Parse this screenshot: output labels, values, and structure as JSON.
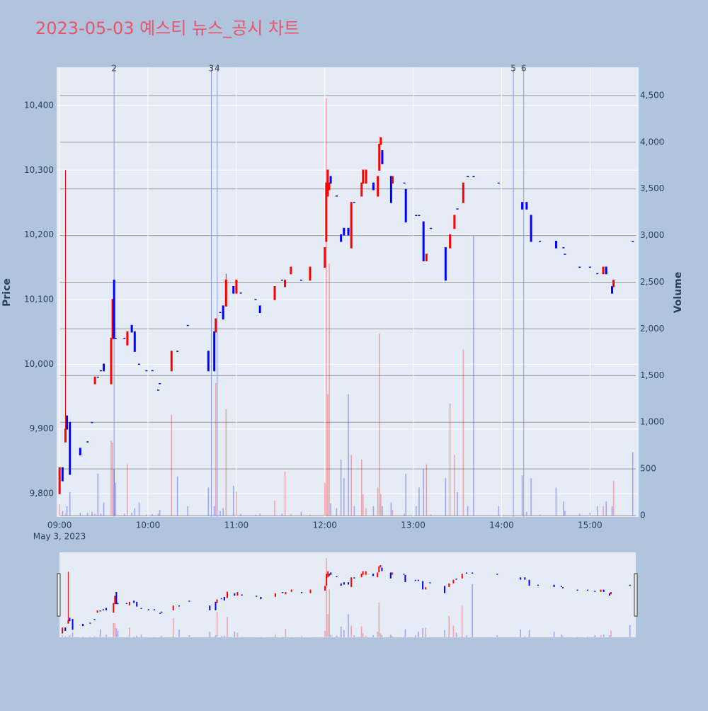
{
  "chart_data": {
    "type": "candlestick",
    "title": "2023-05-03 예스티 뉴스_공시 차트",
    "y_label": "Price",
    "y2_label": "Volume",
    "x_date_label": "May 3, 2023",
    "up_color": "#ff0000",
    "down_color": "#0000ff",
    "xlim": [
      "08:58",
      "15:33"
    ],
    "xticks": [
      "09:00",
      "10:00",
      "11:00",
      "12:00",
      "13:00",
      "14:00",
      "15:00"
    ],
    "ylim": [
      9764,
      10459
    ],
    "yticks": [
      {
        "value": 9800,
        "label": "9,800"
      },
      {
        "value": 9900,
        "label": "9,900"
      },
      {
        "value": 10000,
        "label": "10,000"
      },
      {
        "value": 10100,
        "label": "10,100"
      },
      {
        "value": 10200,
        "label": "10,200"
      },
      {
        "value": 10300,
        "label": "10,300"
      },
      {
        "value": 10400,
        "label": "10,400"
      }
    ],
    "y2lim": [
      -15,
      4803
    ],
    "y2ticks": [
      0,
      500,
      {
        "value": 1000,
        "label": "1,000"
      },
      {
        "value": 1500,
        "label": "1,500"
      },
      {
        "value": 2000,
        "label": "2,000"
      },
      {
        "value": 2500,
        "label": "2,500"
      },
      {
        "value": 3000,
        "label": "3,000"
      },
      {
        "value": 3500,
        "label": "3,500"
      },
      {
        "value": 4000,
        "label": "4,000"
      },
      {
        "value": 4500,
        "label": "4,500"
      }
    ],
    "news": [
      {
        "label": "2",
        "x": "09:37"
      },
      {
        "label": "3",
        "x": "10:43"
      },
      {
        "label": "4",
        "x": "10:47"
      },
      {
        "label": "5",
        "x": "14:08"
      },
      {
        "label": "6",
        "x": "14:15"
      }
    ],
    "x": [
      "09:00",
      "09:02",
      "09:04",
      "09:05",
      "09:07",
      "09:14",
      "09:19",
      "09:22",
      "09:24",
      "09:26",
      "09:28",
      "09:30",
      "09:35",
      "09:36",
      "09:37",
      "09:38",
      "09:44",
      "09:46",
      "09:49",
      "09:51",
      "09:54",
      "09:59",
      "10:03",
      "10:07",
      "10:08",
      "10:16",
      "10:20",
      "10:27",
      "10:41",
      "10:45",
      "10:46",
      "10:49",
      "10:51",
      "10:53",
      "10:58",
      "11:00",
      "11:03",
      "11:13",
      "11:16",
      "11:26",
      "11:31",
      "11:33",
      "11:37",
      "11:44",
      "11:50",
      "12:00",
      "12:01",
      "12:02",
      "12:03",
      "12:04",
      "12:08",
      "12:11",
      "12:13",
      "12:16",
      "12:18",
      "12:20",
      "12:25",
      "12:26",
      "12:28",
      "12:33",
      "12:36",
      "12:37",
      "12:38",
      "12:39",
      "12:45",
      "12:46",
      "12:54",
      "12:55",
      "13:02",
      "13:04",
      "13:07",
      "13:09",
      "13:12",
      "13:22",
      "13:25",
      "13:28",
      "13:30",
      "13:34",
      "13:37",
      "13:41",
      "13:58",
      "14:14",
      "14:17",
      "14:20",
      "14:26",
      "14:37",
      "14:42",
      "14:43",
      "14:53",
      "15:00",
      "15:05",
      "15:09",
      "15:11",
      "15:15",
      "15:16",
      "15:29"
    ],
    "open": [
      9800,
      9840,
      9880,
      9920,
      9910,
      9870,
      9880,
      9910,
      9970,
      9980,
      9990,
      10000,
      9970,
      10040,
      10130,
      10040,
      10040,
      10030,
      10060,
      10050,
      10000,
      9990,
      9990,
      9960,
      9970,
      9990,
      10020,
      10060,
      10020,
      10050,
      10050,
      10080,
      10090,
      10090,
      10120,
      10110,
      10110,
      10100,
      10090,
      10100,
      10130,
      10120,
      10140,
      10130,
      10130,
      10150,
      10190,
      10260,
      10270,
      10290,
      10260,
      10200,
      10210,
      10210,
      10180,
      10250,
      10260,
      10280,
      10280,
      10280,
      10260,
      10300,
      10340,
      10330,
      10290,
      10280,
      10280,
      10270,
      10230,
      10230,
      10220,
      10160,
      10210,
      10180,
      10180,
      10210,
      10240,
      10250,
      10290,
      10290,
      10280,
      10250,
      10250,
      10230,
      10190,
      10190,
      10180,
      10170,
      10150,
      10150,
      10140,
      10140,
      10150,
      10120,
      10120,
      10190
    ],
    "high": [
      9840,
      9840,
      10300,
      9920,
      9910,
      9870,
      9880,
      9910,
      9980,
      9980,
      9990,
      10000,
      10040,
      10100,
      10130,
      10040,
      10040,
      10050,
      10060,
      10050,
      10000,
      9990,
      9990,
      9960,
      9970,
      10020,
      10020,
      10060,
      10020,
      10050,
      10070,
      10080,
      10090,
      10140,
      10120,
      10130,
      10110,
      10100,
      10090,
      10120,
      10130,
      10130,
      10150,
      10130,
      10150,
      10180,
      10280,
      10300,
      10280,
      10290,
      10260,
      10200,
      10210,
      10210,
      10250,
      10250,
      10280,
      10300,
      10300,
      10280,
      10290,
      10340,
      10350,
      10330,
      10290,
      10290,
      10280,
      10270,
      10230,
      10230,
      10220,
      10170,
      10210,
      10180,
      10200,
      10230,
      10240,
      10280,
      10290,
      10290,
      10280,
      10250,
      10250,
      10230,
      10190,
      10190,
      10180,
      10170,
      10150,
      10150,
      10140,
      10150,
      10150,
      10120,
      10130,
      10190
    ],
    "low": [
      9800,
      9820,
      9880,
      9900,
      9830,
      9860,
      9880,
      9910,
      9970,
      9980,
      9990,
      9990,
      9970,
      10040,
      10040,
      10040,
      10040,
      10030,
      10050,
      10020,
      10000,
      9990,
      9990,
      9960,
      9970,
      9990,
      10020,
      10060,
      9990,
      9990,
      10050,
      10080,
      10070,
      10090,
      10110,
      10110,
      10110,
      10100,
      10080,
      10100,
      10130,
      10120,
      10140,
      10130,
      10130,
      10150,
      10190,
      10260,
      10270,
      10280,
      10260,
      10190,
      10200,
      10200,
      10180,
      10250,
      10260,
      10280,
      10280,
      10270,
      10260,
      10300,
      10340,
      10310,
      10250,
      10280,
      10280,
      10220,
      10230,
      10230,
      10160,
      10160,
      10210,
      10130,
      10180,
      10210,
      10240,
      10250,
      10290,
      10290,
      10280,
      10240,
      10240,
      10190,
      10190,
      10180,
      10180,
      10170,
      10150,
      10150,
      10140,
      10140,
      10140,
      10110,
      10120,
      10190
    ],
    "close": [
      9840,
      9820,
      9900,
      9900,
      9830,
      9860,
      9880,
      9910,
      9980,
      9980,
      9990,
      9990,
      10040,
      10100,
      10040,
      10040,
      10040,
      10050,
      10050,
      10020,
      10000,
      9990,
      9990,
      9960,
      9970,
      10020,
      10020,
      10060,
      9990,
      9990,
      10070,
      10080,
      10070,
      10130,
      10110,
      10130,
      10110,
      10100,
      10080,
      10120,
      10130,
      10130,
      10150,
      10130,
      10150,
      10180,
      10280,
      10300,
      10280,
      10280,
      10260,
      10190,
      10200,
      10200,
      10250,
      10250,
      10280,
      10300,
      10300,
      10270,
      10290,
      10340,
      10350,
      10310,
      10250,
      10290,
      10280,
      10220,
      10230,
      10230,
      10160,
      10170,
      10210,
      10130,
      10200,
      10230,
      10240,
      10280,
      10290,
      10290,
      10280,
      10240,
      10240,
      10190,
      10190,
      10180,
      10180,
      10170,
      10150,
      10150,
      10140,
      10150,
      10140,
      10110,
      10130,
      10190
    ],
    "volume": [
      120,
      50,
      20,
      100,
      250,
      30,
      30,
      40,
      20,
      450,
      20,
      140,
      800,
      780,
      500,
      350,
      20,
      550,
      30,
      80,
      140,
      10,
      15,
      20,
      60,
      1080,
      420,
      100,
      300,
      100,
      1420,
      50,
      80,
      1140,
      320,
      260,
      20,
      10,
      20,
      160,
      20,
      470,
      20,
      40,
      10,
      350,
      4470,
      1300,
      2700,
      130,
      80,
      600,
      400,
      1300,
      650,
      100,
      600,
      230,
      80,
      100,
      300,
      1950,
      230,
      100,
      140,
      60,
      20,
      450,
      100,
      300,
      500,
      550,
      10,
      400,
      1200,
      650,
      250,
      1780,
      100,
      3000,
      100,
      430,
      40,
      400,
      10,
      300,
      150,
      50,
      20,
      30,
      100,
      100,
      150,
      100,
      370,
      680
    ]
  }
}
